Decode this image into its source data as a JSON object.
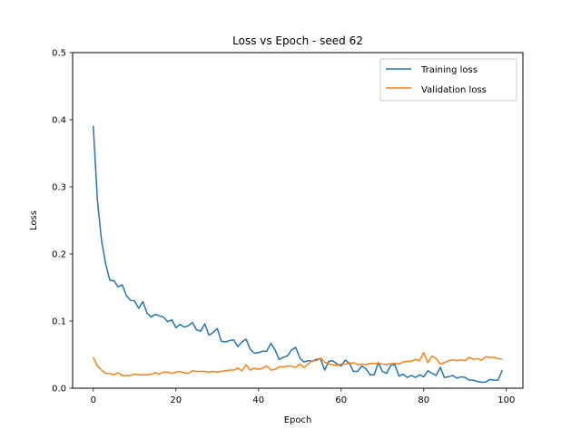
{
  "chart_data": {
    "type": "line",
    "title": "Loss vs Epoch - seed 62",
    "xlabel": "Epoch",
    "ylabel": "Loss",
    "xlim": [
      -5,
      104
    ],
    "ylim": [
      0,
      0.5
    ],
    "xticks": [
      0,
      20,
      40,
      60,
      80,
      100
    ],
    "yticks": [
      0.0,
      0.1,
      0.2,
      0.3,
      0.4,
      0.5
    ],
    "xtick_labels": [
      "0",
      "20",
      "40",
      "60",
      "80",
      "100"
    ],
    "ytick_labels": [
      "0.0",
      "0.1",
      "0.2",
      "0.3",
      "0.4",
      "0.5"
    ],
    "grid": false,
    "legend_position": "top-right",
    "series": [
      {
        "name": "Training loss",
        "color": "#1f77b4",
        "x": [
          0,
          1,
          2,
          3,
          4,
          5,
          6,
          7,
          8,
          9,
          10,
          11,
          12,
          13,
          14,
          15,
          16,
          17,
          18,
          19,
          20,
          21,
          22,
          23,
          24,
          25,
          26,
          27,
          28,
          29,
          30,
          31,
          32,
          33,
          34,
          35,
          36,
          37,
          38,
          39,
          40,
          41,
          42,
          43,
          44,
          45,
          46,
          47,
          48,
          49,
          50,
          51,
          52,
          53,
          54,
          55,
          56,
          57,
          58,
          59,
          60,
          61,
          62,
          63,
          64,
          65,
          66,
          67,
          68,
          69,
          70,
          71,
          72,
          73,
          74,
          75,
          76,
          77,
          78,
          79,
          80,
          81,
          82,
          83,
          84,
          85,
          86,
          87,
          88,
          89,
          90,
          91,
          92,
          93,
          94,
          95,
          96,
          97,
          98,
          99
        ],
        "values": [
          0.391,
          0.28,
          0.22,
          0.185,
          0.161,
          0.16,
          0.151,
          0.154,
          0.138,
          0.131,
          0.13,
          0.119,
          0.129,
          0.112,
          0.106,
          0.11,
          0.108,
          0.106,
          0.099,
          0.102,
          0.09,
          0.095,
          0.091,
          0.093,
          0.098,
          0.087,
          0.085,
          0.096,
          0.079,
          0.083,
          0.089,
          0.07,
          0.069,
          0.071,
          0.072,
          0.062,
          0.069,
          0.073,
          0.058,
          0.052,
          0.053,
          0.055,
          0.055,
          0.067,
          0.057,
          0.043,
          0.046,
          0.048,
          0.057,
          0.061,
          0.045,
          0.039,
          0.041,
          0.04,
          0.043,
          0.044,
          0.027,
          0.04,
          0.041,
          0.036,
          0.033,
          0.042,
          0.037,
          0.025,
          0.025,
          0.033,
          0.029,
          0.02,
          0.02,
          0.038,
          0.025,
          0.022,
          0.034,
          0.035,
          0.018,
          0.021,
          0.016,
          0.019,
          0.016,
          0.02,
          0.017,
          0.026,
          0.022,
          0.019,
          0.031,
          0.016,
          0.017,
          0.019,
          0.015,
          0.017,
          0.016,
          0.012,
          0.012,
          0.01,
          0.009,
          0.009,
          0.013,
          0.012,
          0.012,
          0.027
        ]
      },
      {
        "name": "Validation loss",
        "color": "#ff7f0e",
        "x": [
          0,
          1,
          2,
          3,
          4,
          5,
          6,
          7,
          8,
          9,
          10,
          11,
          12,
          13,
          14,
          15,
          16,
          17,
          18,
          19,
          20,
          21,
          22,
          23,
          24,
          25,
          26,
          27,
          28,
          29,
          30,
          31,
          32,
          33,
          34,
          35,
          36,
          37,
          38,
          39,
          40,
          41,
          42,
          43,
          44,
          45,
          46,
          47,
          48,
          49,
          50,
          51,
          52,
          53,
          54,
          55,
          56,
          57,
          58,
          59,
          60,
          61,
          62,
          63,
          64,
          65,
          66,
          67,
          68,
          69,
          70,
          71,
          72,
          73,
          74,
          75,
          76,
          77,
          78,
          79,
          80,
          81,
          82,
          83,
          84,
          85,
          86,
          87,
          88,
          89,
          90,
          91,
          92,
          93,
          94,
          95,
          96,
          97,
          98,
          99
        ],
        "values": [
          0.046,
          0.033,
          0.027,
          0.022,
          0.022,
          0.02,
          0.023,
          0.019,
          0.019,
          0.019,
          0.021,
          0.02,
          0.02,
          0.02,
          0.021,
          0.023,
          0.021,
          0.024,
          0.024,
          0.022,
          0.024,
          0.025,
          0.023,
          0.022,
          0.026,
          0.025,
          0.025,
          0.025,
          0.024,
          0.025,
          0.024,
          0.025,
          0.026,
          0.027,
          0.027,
          0.03,
          0.026,
          0.035,
          0.027,
          0.03,
          0.028,
          0.03,
          0.033,
          0.027,
          0.028,
          0.032,
          0.032,
          0.033,
          0.033,
          0.031,
          0.036,
          0.031,
          0.036,
          0.041,
          0.041,
          0.045,
          0.039,
          0.036,
          0.035,
          0.034,
          0.036,
          0.036,
          0.037,
          0.038,
          0.035,
          0.036,
          0.035,
          0.037,
          0.037,
          0.037,
          0.036,
          0.035,
          0.037,
          0.037,
          0.036,
          0.039,
          0.04,
          0.04,
          0.043,
          0.041,
          0.053,
          0.038,
          0.048,
          0.044,
          0.036,
          0.038,
          0.041,
          0.042,
          0.041,
          0.042,
          0.041,
          0.046,
          0.043,
          0.044,
          0.042,
          0.047,
          0.046,
          0.046,
          0.044,
          0.043
        ]
      }
    ]
  }
}
